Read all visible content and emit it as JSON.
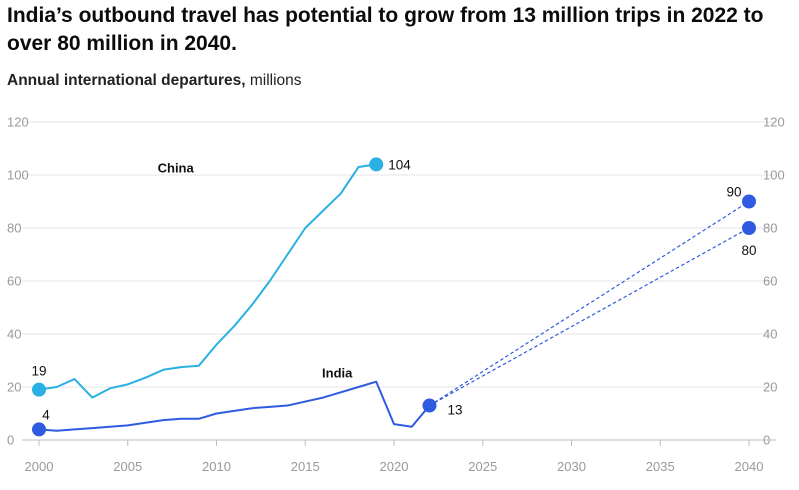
{
  "title": "India’s outbound travel has potential to grow from 13 million trips in 2022 to over 80 million in 2040.",
  "subtitle": {
    "bold": "Annual international departures,",
    "unit": "millions"
  },
  "colors": {
    "china": "#2ab0e3",
    "india": "#2f5be0",
    "projection": "#2f5be0",
    "grid": "#e6e6e6",
    "axis": "#bdbdbd",
    "tick": "#9a9a9a"
  },
  "chart_data": {
    "type": "line",
    "title": "India’s outbound travel has potential to grow from 13 million trips in 2022 to over 80 million in 2040.",
    "ylabel": "Annual international departures, millions",
    "xlabel": "",
    "xlim": [
      2000,
      2040
    ],
    "ylim": [
      0,
      120
    ],
    "x_ticks": [
      "2000",
      "2005",
      "2010",
      "2015",
      "2020",
      "2025",
      "2030",
      "2035",
      "2040"
    ],
    "y_ticks": [
      "0",
      "20",
      "40",
      "60",
      "80",
      "100",
      "120"
    ],
    "grid": true,
    "series": [
      {
        "name": "China",
        "color": "#2ab0e3",
        "x": [
          2000,
          2001,
          2002,
          2003,
          2004,
          2005,
          2006,
          2007,
          2008,
          2009,
          2010,
          2011,
          2012,
          2013,
          2014,
          2015,
          2016,
          2017,
          2018,
          2019
        ],
        "y": [
          19,
          20,
          23,
          16,
          19.5,
          21,
          23.5,
          26.5,
          27.5,
          28,
          36,
          43,
          51,
          60,
          70,
          80,
          86.5,
          93,
          103,
          104
        ]
      },
      {
        "name": "India",
        "color": "#2f5be0",
        "x": [
          2000,
          2001,
          2002,
          2003,
          2004,
          2005,
          2006,
          2007,
          2008,
          2009,
          2010,
          2011,
          2012,
          2013,
          2014,
          2015,
          2016,
          2017,
          2018,
          2019,
          2020,
          2021,
          2022
        ],
        "y": [
          4,
          3.5,
          4,
          4.5,
          5,
          5.5,
          6.5,
          7.5,
          8,
          8,
          10,
          11,
          12,
          12.5,
          13,
          14.5,
          16,
          18,
          20,
          22,
          6,
          5,
          13
        ]
      }
    ],
    "projections": [
      {
        "from": [
          2022,
          13
        ],
        "to": [
          2040,
          90
        ],
        "style": "dashed"
      },
      {
        "from": [
          2022,
          13
        ],
        "to": [
          2040,
          80
        ],
        "style": "dashed"
      }
    ],
    "annotations": [
      {
        "text": "19",
        "x": 2000,
        "y": 19
      },
      {
        "text": "4",
        "x": 2000,
        "y": 4
      },
      {
        "text": "104",
        "x": 2019,
        "y": 104
      },
      {
        "text": "13",
        "x": 2022,
        "y": 13
      },
      {
        "text": "90",
        "x": 2040,
        "y": 90
      },
      {
        "text": "80",
        "x": 2040,
        "y": 80
      }
    ],
    "series_labels": [
      {
        "text": "China",
        "series": "China"
      },
      {
        "text": "India",
        "series": "India"
      }
    ]
  }
}
